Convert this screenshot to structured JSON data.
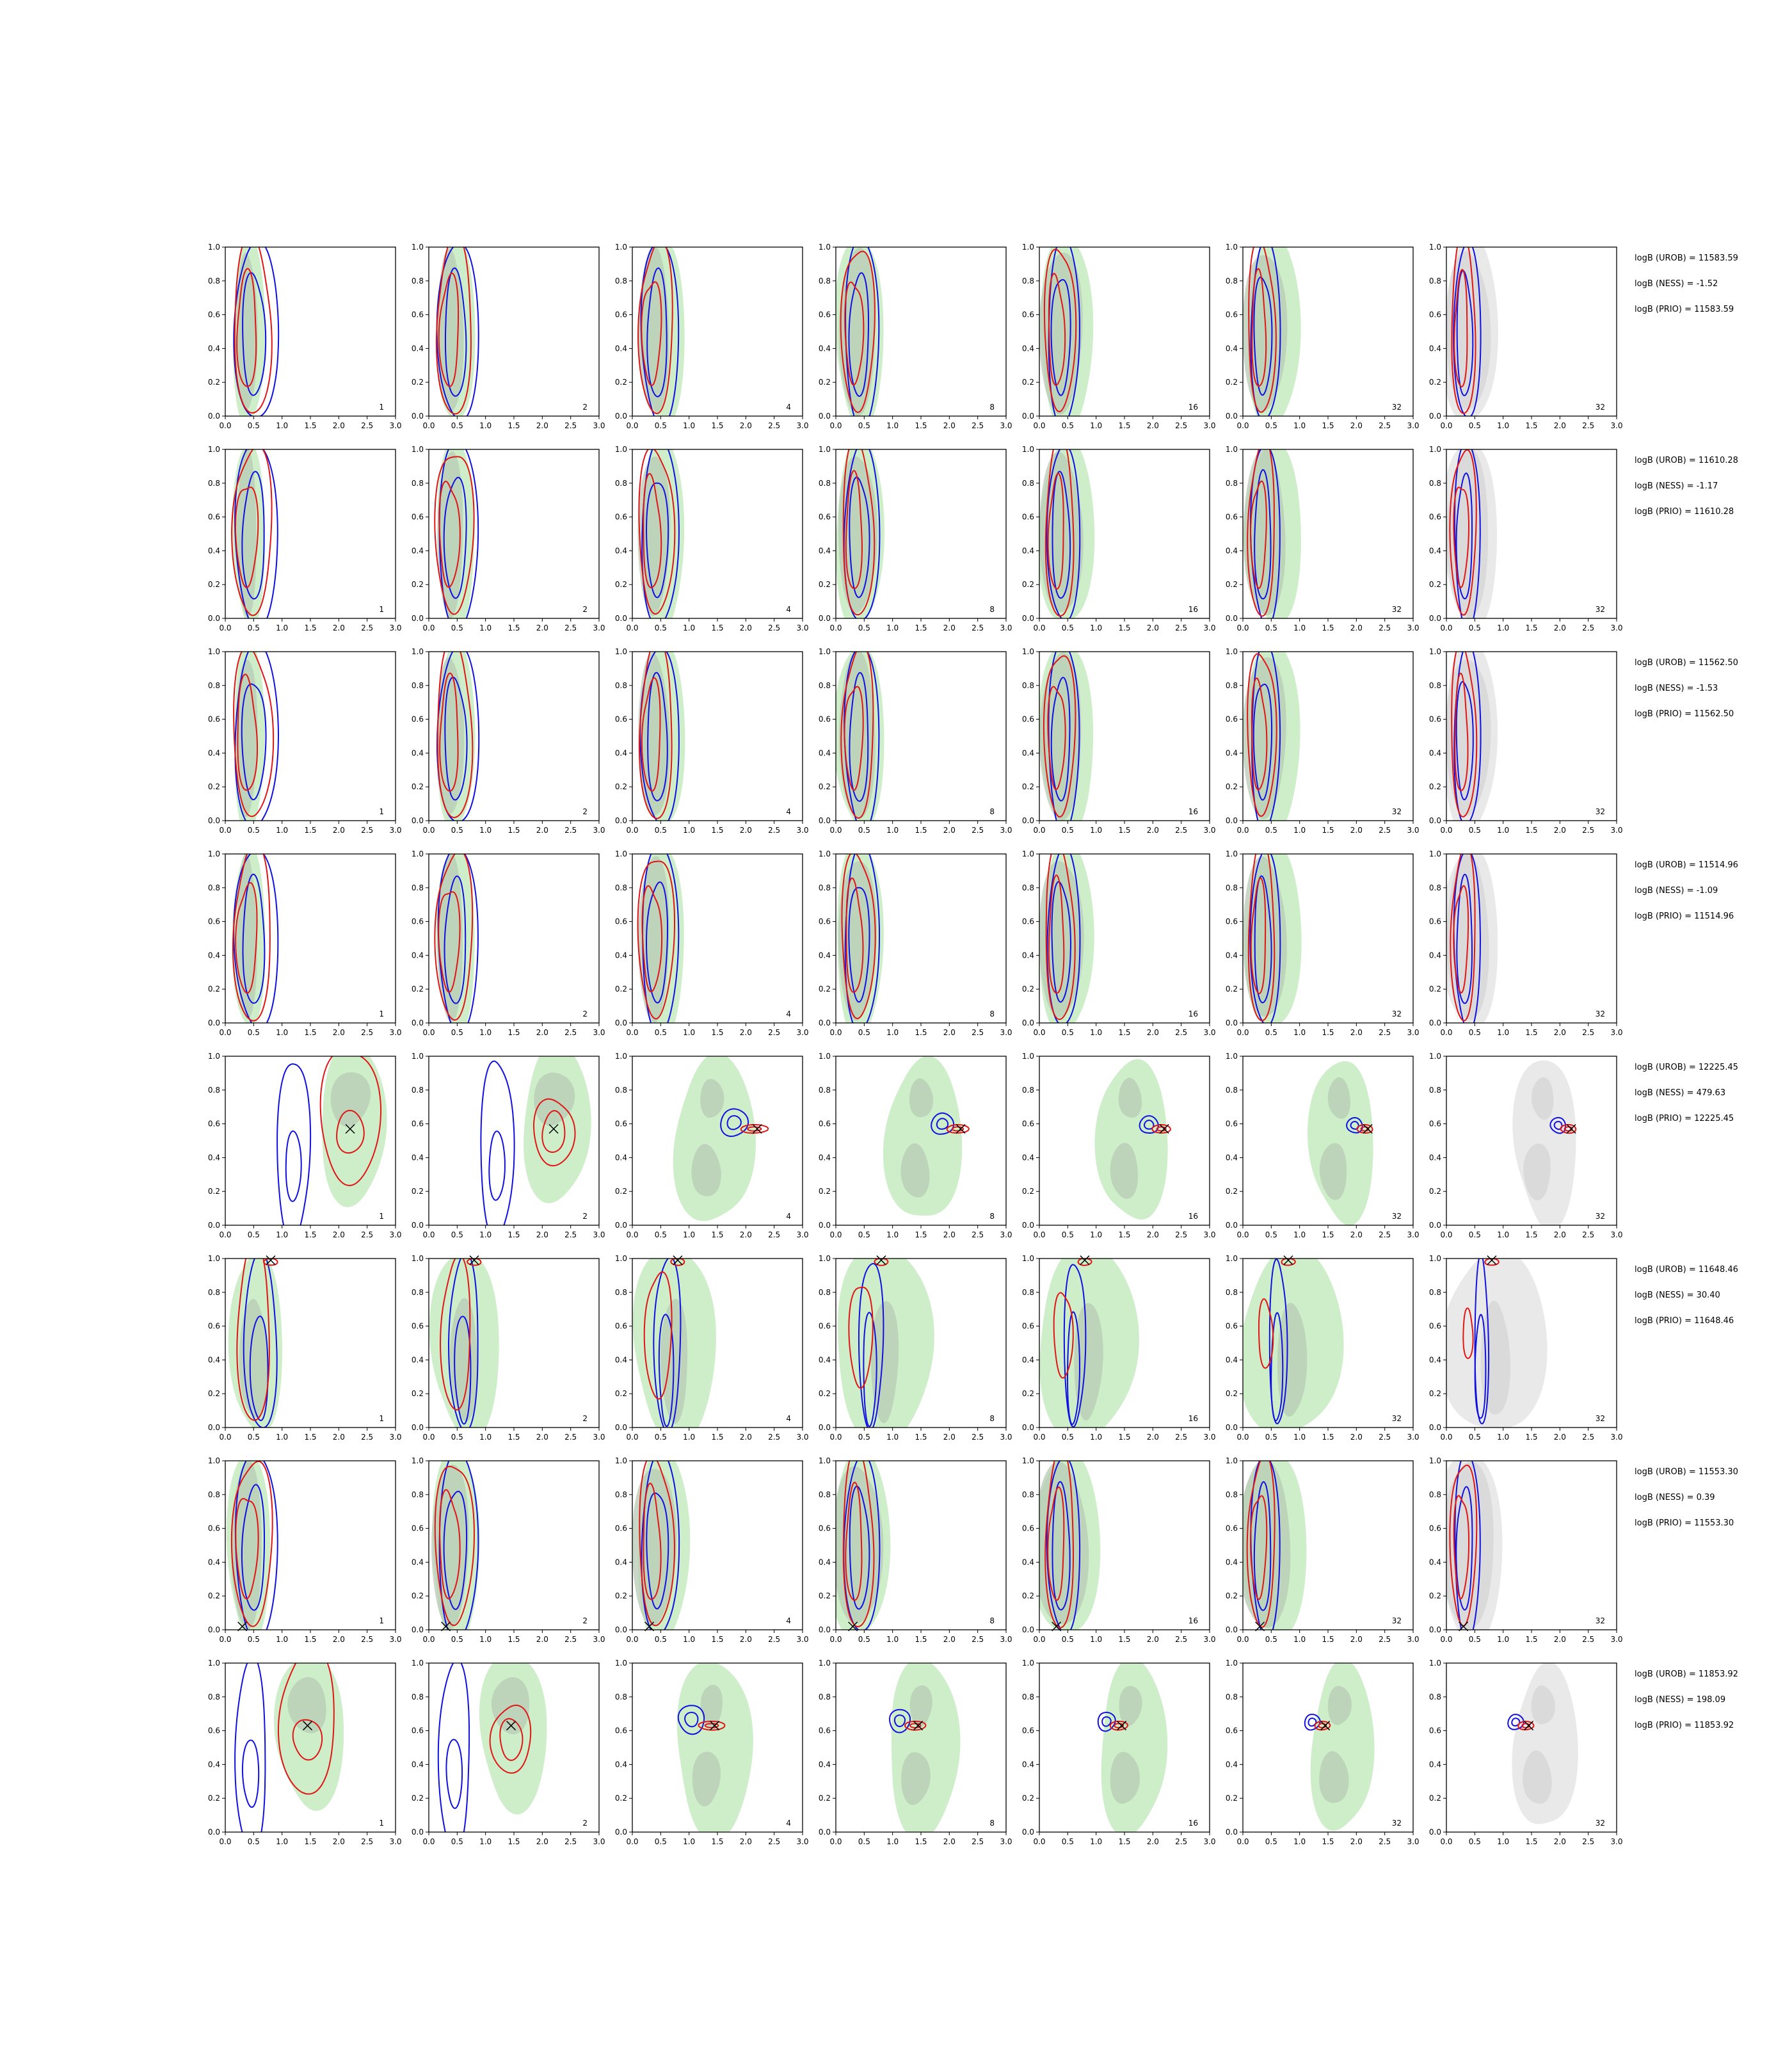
{
  "chart_data": {
    "type": "scatter",
    "grid": false,
    "xlim": [
      0,
      3
    ],
    "ylim": [
      0,
      1
    ],
    "xticks": [
      "0.0",
      "0.5",
      "1.0",
      "1.5",
      "2.0",
      "2.5",
      "3.0"
    ],
    "yticks": [
      "0.0",
      "0.2",
      "0.4",
      "0.6",
      "0.8",
      "1.0"
    ],
    "column_labels": [
      "1",
      "2",
      "4",
      "8",
      "16",
      "32",
      "32"
    ],
    "colors": {
      "blue": "#1010e0",
      "red": "#e01515",
      "green_fill_outer": "#cdeec9",
      "green_fill_inner": "#b7c9b4",
      "grey_fill_outer": "#e9e9e9",
      "grey_fill_inner": "#d4d4d4"
    },
    "rows": [
      {
        "logB_UROB": "logB (UROB) = 11583.59",
        "logB_NESS": "logB (NESS) = -1.52",
        "logB_PRIO": "logB (PRIO) = 11583.59",
        "truth": null
      },
      {
        "logB_UROB": "logB (UROB) = 11610.28",
        "logB_NESS": "logB (NESS) = -1.17",
        "logB_PRIO": "logB (PRIO) = 11610.28",
        "truth": null
      },
      {
        "logB_UROB": "logB (UROB) = 11562.50",
        "logB_NESS": "logB (NESS) = -1.53",
        "logB_PRIO": "logB (PRIO) = 11562.50",
        "truth": null
      },
      {
        "logB_UROB": "logB (UROB) = 11514.96",
        "logB_NESS": "logB (NESS) = -1.09",
        "logB_PRIO": "logB (PRIO) = 11514.96",
        "truth": null
      },
      {
        "logB_UROB": "logB (UROB) = 12225.45",
        "logB_NESS": "logB (NESS) = 479.63",
        "logB_PRIO": "logB (PRIO) = 12225.45",
        "truth": [
          2.2,
          0.57
        ]
      },
      {
        "logB_UROB": "logB (UROB) = 11648.46",
        "logB_NESS": "logB (NESS) = 30.40",
        "logB_PRIO": "logB (PRIO) = 11648.46",
        "truth": [
          0.8,
          0.99
        ]
      },
      {
        "logB_UROB": "logB (UROB) = 11553.30",
        "logB_NESS": "logB (NESS) = 0.39",
        "logB_PRIO": "logB (PRIO) = 11553.30",
        "truth": [
          0.3,
          0.02
        ]
      },
      {
        "logB_UROB": "logB (UROB) = 11853.92",
        "logB_NESS": "logB (NESS) = 198.09",
        "logB_PRIO": "logB (PRIO) = 11853.92",
        "truth": [
          1.45,
          0.63
        ]
      }
    ]
  }
}
